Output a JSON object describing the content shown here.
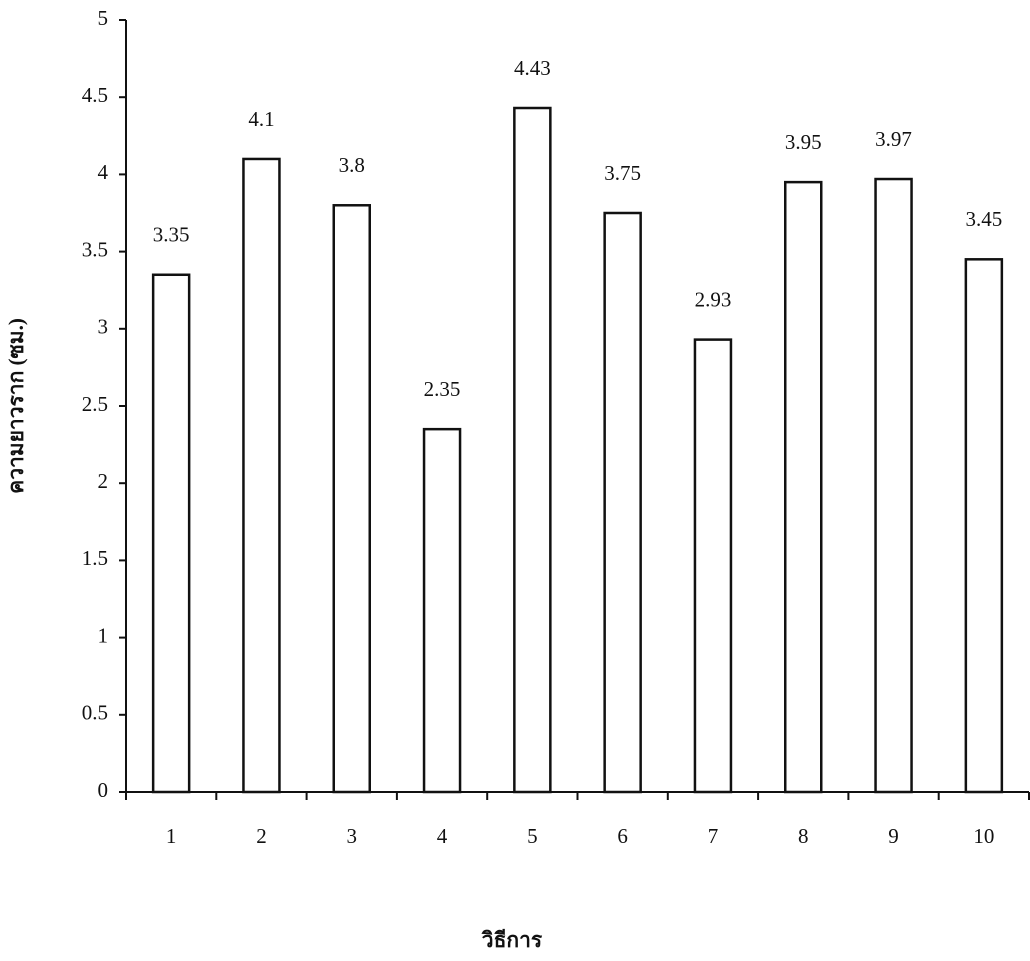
{
  "chart_data": {
    "type": "bar",
    "x_label": "วิธีการ",
    "y_label": "ความยาวราก (ซม.)",
    "categories": [
      "1",
      "2",
      "3",
      "4",
      "5",
      "6",
      "7",
      "8",
      "9",
      "10"
    ],
    "values": [
      3.35,
      4.1,
      3.8,
      2.35,
      4.43,
      3.75,
      2.93,
      3.95,
      3.97,
      3.45
    ],
    "color": "#ffffff",
    "ylim": [
      0,
      5
    ],
    "yticks": [
      0,
      0.5,
      1,
      1.5,
      2,
      2.5,
      3,
      3.5,
      4,
      4.5,
      5
    ],
    "grid": false
  }
}
